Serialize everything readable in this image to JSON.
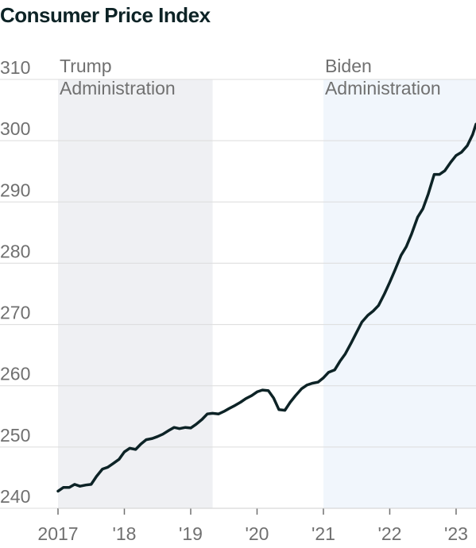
{
  "chart_data": {
    "type": "line",
    "title": "Consumer Price Index",
    "xlabel": "",
    "ylabel": "",
    "xlim": [
      2017.0,
      2023.3
    ],
    "ylim": [
      240,
      310
    ],
    "ytick_values": [
      240,
      250,
      260,
      270,
      280,
      290,
      300,
      310
    ],
    "xtick_values": [
      2017,
      2018,
      2019,
      2020,
      2021,
      2022,
      2023
    ],
    "xtick_labels": [
      "2017",
      "'18",
      "'19",
      "'20",
      "'21",
      "'22",
      "'23"
    ],
    "grid": true,
    "shaded_periods": [
      {
        "label_line1": "Trump",
        "label_line2": "Administration",
        "start": 2017.0,
        "end": 2019.33,
        "color": "#eff0f3"
      },
      {
        "label_line1": "Biden",
        "label_line2": "Administration",
        "start": 2021.0,
        "end": 2023.3,
        "color": "#f1f6fc"
      }
    ],
    "line_color": "#0d2326",
    "series": [
      {
        "x": [
          2017.0,
          2017.08,
          2017.17,
          2017.25,
          2017.33,
          2017.42,
          2017.5,
          2017.58,
          2017.67,
          2017.75,
          2017.83,
          2017.92,
          2018.0,
          2018.08,
          2018.17,
          2018.25,
          2018.33,
          2018.42,
          2018.5,
          2018.58,
          2018.67,
          2018.75,
          2018.83,
          2018.92,
          2019.0,
          2019.08,
          2019.17,
          2019.25,
          2019.33,
          2019.42,
          2019.5,
          2019.58,
          2019.67,
          2019.75,
          2019.83,
          2019.92,
          2020.0,
          2020.08,
          2020.17,
          2020.25,
          2020.33,
          2020.42,
          2020.5,
          2020.58,
          2020.67,
          2020.75,
          2020.83,
          2020.92,
          2021.0,
          2021.08,
          2021.17,
          2021.25,
          2021.33,
          2021.42,
          2021.5,
          2021.58,
          2021.67,
          2021.75,
          2021.83,
          2021.92,
          2022.0,
          2022.08,
          2022.17,
          2022.25,
          2022.33,
          2022.42,
          2022.5,
          2022.58,
          2022.67,
          2022.75,
          2022.83,
          2022.92,
          2023.0,
          2023.08,
          2023.17,
          2023.25,
          2023.3
        ],
        "values": [
          242.8,
          243.4,
          243.4,
          243.9,
          243.6,
          243.8,
          243.9,
          245.2,
          246.4,
          246.7,
          247.3,
          248.0,
          249.2,
          249.8,
          249.6,
          250.5,
          251.2,
          251.4,
          251.7,
          252.1,
          252.7,
          253.2,
          253.0,
          253.2,
          253.1,
          253.7,
          254.5,
          255.4,
          255.5,
          255.4,
          255.8,
          256.3,
          256.8,
          257.3,
          257.9,
          258.4,
          259.0,
          259.3,
          259.2,
          258.0,
          256.1,
          256.0,
          257.3,
          258.4,
          259.5,
          260.1,
          260.4,
          260.6,
          261.3,
          262.2,
          262.6,
          264.0,
          265.2,
          267.0,
          268.7,
          270.4,
          271.5,
          272.2,
          273.1,
          275.0,
          276.9,
          278.9,
          281.3,
          282.7,
          284.8,
          287.5,
          288.9,
          291.3,
          294.5,
          294.5,
          295.1,
          296.5,
          297.6,
          298.1,
          299.2,
          301.0,
          302.7
        ]
      }
    ]
  }
}
